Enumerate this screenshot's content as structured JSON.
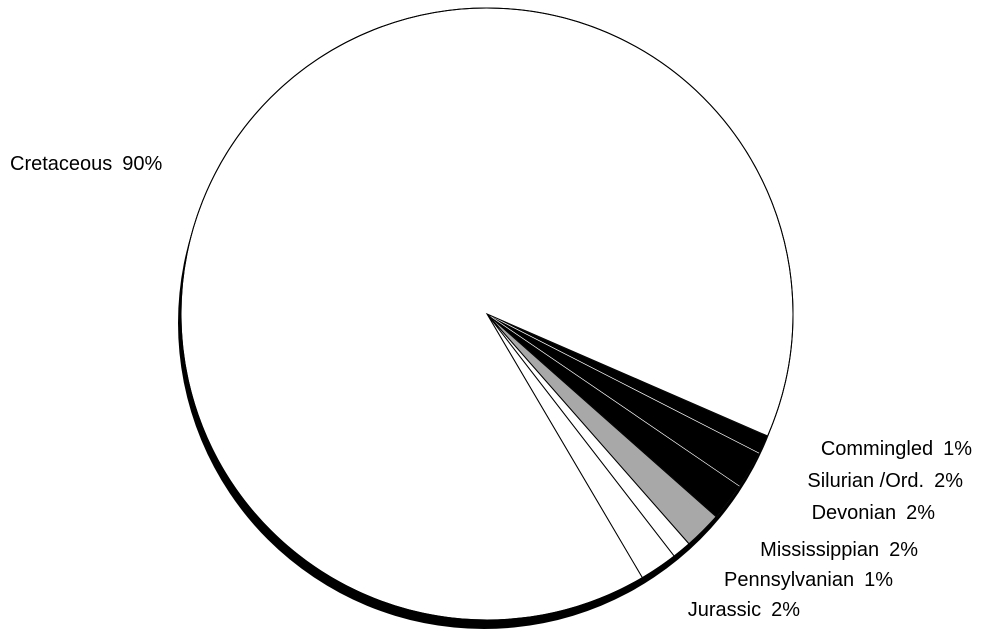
{
  "chart_data": {
    "type": "pie",
    "categories": [
      "Commingled",
      "Silurian /Ord.",
      "Devonian",
      "Mississippian",
      "Pennsylvanian",
      "Jurassic",
      "Cretaceous"
    ],
    "values": [
      1,
      2,
      2,
      2,
      1,
      2,
      90
    ],
    "value_labels": [
      "1%",
      "2%",
      "2%",
      "2%",
      "1%",
      "2%",
      "90%"
    ],
    "colors": [
      "#000000",
      "#000000",
      "#000000",
      "#a8a8a8",
      "#ffffff",
      "#ffffff",
      "#ffffff"
    ]
  }
}
